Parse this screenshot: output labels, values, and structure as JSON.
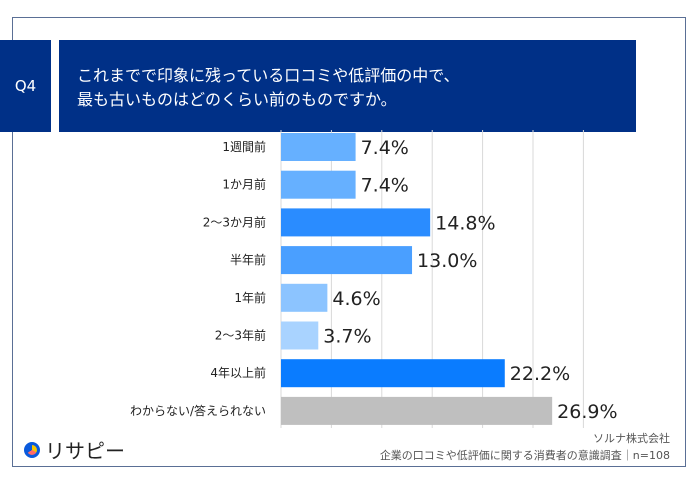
{
  "header": {
    "question_no": "Q4",
    "title": "これまでで印象に残っている口コミや低評価の中で、\n最も古いものはどのくらい前のものですか。"
  },
  "chart_data": {
    "type": "bar",
    "orientation": "horizontal",
    "categories": [
      "1週間前",
      "1か月前",
      "2〜3か月前",
      "半年前",
      "1年前",
      "2〜3年前",
      "4年以上前",
      "わからない/答えられない"
    ],
    "values": [
      7.4,
      7.4,
      14.8,
      13.0,
      4.6,
      3.7,
      22.2,
      26.9
    ],
    "value_labels": [
      "7.4%",
      "7.4%",
      "14.8%",
      "13.0%",
      "4.6%",
      "3.7%",
      "22.2%",
      "26.9%"
    ],
    "colors": [
      "#66b0ff",
      "#66b0ff",
      "#2a8cff",
      "#4a9fff",
      "#8cc4ff",
      "#a9d3ff",
      "#0a7cff",
      "#bfbfbf"
    ],
    "xlim": [
      0,
      30
    ],
    "grid": true,
    "unit": "%"
  },
  "footer": {
    "logo": "リサピー",
    "company": "ソルナ株式会社",
    "survey": "企業の口コミや低評価に関する消費者の意識調査｜n=108"
  }
}
